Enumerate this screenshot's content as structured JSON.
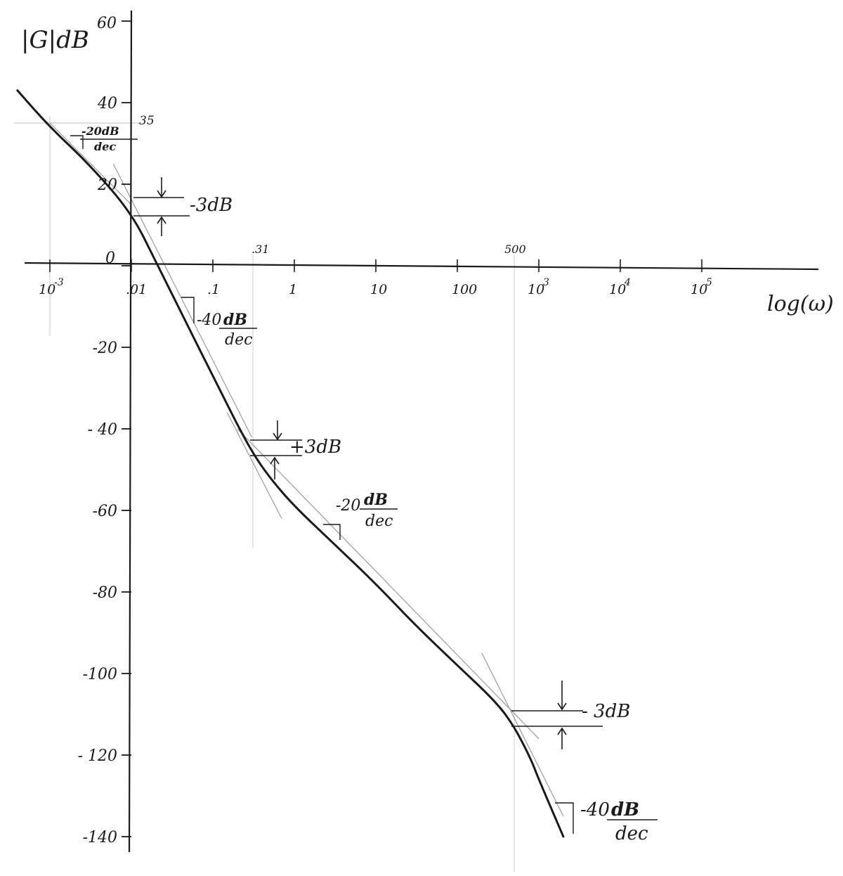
{
  "chart_data": {
    "type": "line",
    "title": "",
    "ylabel": "|G|dB",
    "xlabel": "log(ω)",
    "ylim": [
      -150,
      60
    ],
    "xlim": [
      0.001,
      1000000
    ],
    "x_scale": "log",
    "y_ticks": [
      {
        "value": 60,
        "label": "60"
      },
      {
        "value": 40,
        "label": "40"
      },
      {
        "value": 20,
        "label": "20"
      },
      {
        "value": 0,
        "label": "0"
      },
      {
        "value": -20,
        "label": "-20"
      },
      {
        "value": -40,
        "label": "- 40"
      },
      {
        "value": -60,
        "label": "-60"
      },
      {
        "value": -80,
        "label": "-80"
      },
      {
        "value": -100,
        "label": "-100"
      },
      {
        "value": -120,
        "label": "- 120"
      },
      {
        "value": -140,
        "label": "-140"
      }
    ],
    "x_ticks": [
      {
        "value": 0.001,
        "label": "10",
        "sup": "-3"
      },
      {
        "value": 0.01,
        "label": ".01",
        "sup": ""
      },
      {
        "value": 0.1,
        "label": ".1",
        "sup": ""
      },
      {
        "value": 1,
        "label": "1",
        "sup": ""
      },
      {
        "value": 10,
        "label": "10",
        "sup": ""
      },
      {
        "value": 100,
        "label": "100",
        "sup": ""
      },
      {
        "value": 1000,
        "label": "10",
        "sup": "3"
      },
      {
        "value": 10000,
        "label": "10",
        "sup": "4"
      },
      {
        "value": 100000,
        "label": "10",
        "sup": "5"
      }
    ],
    "marked_x": [
      {
        "value": 0.31,
        "label": ".31"
      },
      {
        "value": 500,
        "label": "500"
      }
    ],
    "marked_y": {
      "value": 35,
      "label": "35",
      "at_x": 0.001
    },
    "series": [
      {
        "x": [
          0.0004,
          0.001,
          0.003,
          0.01,
          0.02,
          0.05,
          0.1,
          0.2,
          0.31,
          0.5,
          1,
          3,
          10,
          30,
          100,
          300,
          500,
          800,
          1000,
          2000
        ],
        "y": [
          43,
          34,
          25,
          13,
          1,
          -15,
          -27,
          -39,
          -46,
          -52,
          -59,
          -68,
          -78,
          -88,
          -98,
          -107,
          -113,
          -121,
          -126,
          -140
        ]
      }
    ],
    "asymptotes": [
      {
        "x": [
          0.001,
          0.01
        ],
        "y": [
          35,
          15
        ]
      },
      {
        "x": [
          0.006,
          0.3
        ],
        "y": [
          25,
          -42
        ]
      },
      {
        "x": [
          0.15,
          0.7
        ],
        "y": [
          -36,
          -62
        ]
      },
      {
        "x": [
          0.2,
          1000
        ],
        "y": [
          -40,
          -116
        ]
      },
      {
        "x": [
          200,
          2000
        ],
        "y": [
          -95,
          -135
        ]
      }
    ],
    "annotations": [
      {
        "slope": "-20dB",
        "unit": "dec"
      },
      {
        "slope": "-40",
        "slope_unit": "dB",
        "unit": "dec"
      },
      {
        "slope": "-20",
        "slope_unit": "dB",
        "unit": "dec"
      },
      {
        "slope": "-40",
        "slope_unit": "dB",
        "unit": "dec"
      }
    ],
    "db_notes": [
      "-3dB",
      "+3dB",
      "- 3dB"
    ]
  },
  "colors": {
    "ink": "#1a1a1a",
    "pencil": "#9a9a9a",
    "paper": "#ffffff"
  }
}
